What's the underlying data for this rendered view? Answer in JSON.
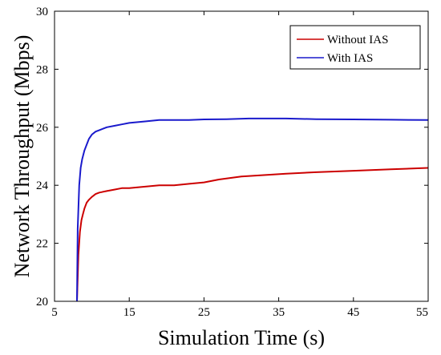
{
  "chart_data": {
    "type": "line",
    "title": "",
    "xlabel": "Simulation Time (s)",
    "ylabel": "Network Throughput (Mbps)",
    "xlim": [
      5,
      55
    ],
    "ylim": [
      20,
      30
    ],
    "xticks": [
      5,
      15,
      25,
      35,
      45,
      55
    ],
    "yticks": [
      20,
      22,
      24,
      26,
      28,
      30
    ],
    "grid": false,
    "legend_position": "top-right",
    "series": [
      {
        "name": "Without IAS",
        "color": "#cc0000",
        "x": [
          8.0,
          8.2,
          8.4,
          8.6,
          8.8,
          9.0,
          9.3,
          9.6,
          10.0,
          10.5,
          11.0,
          12.0,
          13.0,
          14.0,
          15.0,
          17.0,
          19.0,
          21.0,
          23.0,
          25.0,
          27.0,
          30.0,
          33.0,
          36.0,
          40.0,
          45.0,
          50.0,
          55.0
        ],
        "y": [
          20.0,
          21.6,
          22.4,
          22.8,
          23.0,
          23.2,
          23.4,
          23.5,
          23.6,
          23.7,
          23.75,
          23.8,
          23.85,
          23.9,
          23.9,
          23.95,
          24.0,
          24.0,
          24.05,
          24.1,
          24.2,
          24.3,
          24.35,
          24.4,
          24.45,
          24.5,
          24.55,
          24.6
        ]
      },
      {
        "name": "With IAS",
        "color": "#1a1acc",
        "x": [
          8.0,
          8.1,
          8.3,
          8.5,
          8.7,
          9.0,
          9.3,
          9.6,
          10.0,
          10.5,
          11.0,
          12.0,
          13.0,
          14.0,
          15.0,
          17.0,
          19.0,
          21.0,
          23.0,
          25.0,
          28.0,
          31.0,
          34.0,
          36.0,
          40.0,
          45.0,
          50.0,
          55.0
        ],
        "y": [
          20.0,
          22.5,
          24.0,
          24.6,
          24.9,
          25.2,
          25.4,
          25.6,
          25.75,
          25.85,
          25.9,
          26.0,
          26.05,
          26.1,
          26.15,
          26.2,
          26.25,
          26.25,
          26.25,
          26.27,
          26.28,
          26.3,
          26.3,
          26.3,
          26.28,
          26.27,
          26.26,
          26.25
        ]
      }
    ]
  }
}
